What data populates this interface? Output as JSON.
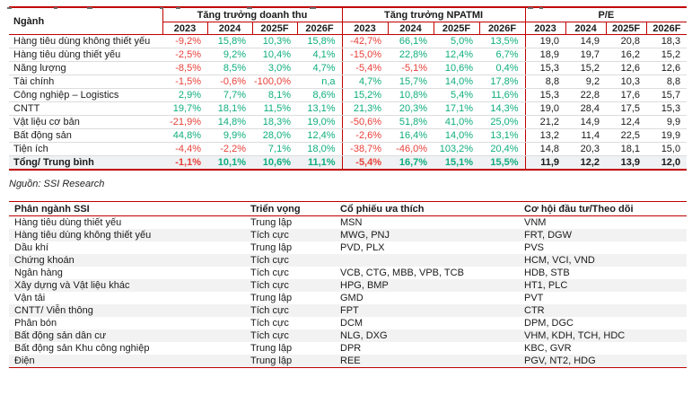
{
  "source_note": "Nguồn: SSI Research",
  "colors": {
    "positive": "#0fae7d",
    "negative": "#e8403a",
    "rule_red": "#c00000",
    "row_shade": "#f2f2f2"
  },
  "table1": {
    "first_col_header": "Ngành",
    "groups": [
      "Tăng trưởng doanh thu",
      "Tăng trưởng NPATMI",
      "P/E"
    ],
    "years": [
      "2023",
      "2024",
      "2025F",
      "2026F"
    ],
    "rows": [
      {
        "name": "Hàng tiêu dùng không thiết yếu",
        "revenue": [
          "-9,2%",
          "15,8%",
          "10,3%",
          "15,8%"
        ],
        "npatmi": [
          "-42,7%",
          "66,1%",
          "5,0%",
          "13,5%"
        ],
        "pe": [
          "19,0",
          "14,9",
          "20,8",
          "18,3"
        ]
      },
      {
        "name": "Hàng tiêu dùng thiết yếu",
        "revenue": [
          "-2,5%",
          "9,2%",
          "10,4%",
          "4,1%"
        ],
        "npatmi": [
          "-15,0%",
          "22,8%",
          "12,4%",
          "6,7%"
        ],
        "pe": [
          "18,9",
          "19,7",
          "16,2",
          "15,2"
        ]
      },
      {
        "name": "Năng lượng",
        "revenue": [
          "-8,5%",
          "8,5%",
          "3,0%",
          "4,7%"
        ],
        "npatmi": [
          "-5,4%",
          "-5,1%",
          "10,6%",
          "0,4%"
        ],
        "pe": [
          "15,3",
          "15,2",
          "12,6",
          "12,6"
        ]
      },
      {
        "name": "Tài chính",
        "revenue": [
          "-1,5%",
          "-0,6%",
          "-100,0%",
          "n,a"
        ],
        "npatmi": [
          "4,7%",
          "15,7%",
          "14,0%",
          "17,8%"
        ],
        "pe": [
          "8,8",
          "9,2",
          "10,3",
          "8,8"
        ]
      },
      {
        "name": "Công nghiệp – Logistics",
        "revenue": [
          "2,9%",
          "7,7%",
          "8,1%",
          "8,6%"
        ],
        "npatmi": [
          "15,2%",
          "10,8%",
          "5,4%",
          "11,6%"
        ],
        "pe": [
          "15,3",
          "22,8",
          "17,6",
          "15,7"
        ]
      },
      {
        "name": "CNTT",
        "revenue": [
          "19,7%",
          "18,1%",
          "11,5%",
          "13,1%"
        ],
        "npatmi": [
          "21,3%",
          "20,3%",
          "17,1%",
          "14,3%"
        ],
        "pe": [
          "19,0",
          "28,4",
          "17,5",
          "15,3"
        ]
      },
      {
        "name": "Vật liệu cơ bản",
        "revenue": [
          "-21,9%",
          "14,8%",
          "18,3%",
          "19,0%"
        ],
        "npatmi": [
          "-50,6%",
          "51,8%",
          "41,0%",
          "25,0%"
        ],
        "pe": [
          "21,2",
          "14,9",
          "12,4",
          "9,9"
        ]
      },
      {
        "name": "Bất động sản",
        "revenue": [
          "44,8%",
          "9,9%",
          "28,0%",
          "12,4%"
        ],
        "npatmi": [
          "-2,6%",
          "16,4%",
          "14,0%",
          "13,1%"
        ],
        "pe": [
          "13,2",
          "11,4",
          "22,5",
          "19,9"
        ]
      },
      {
        "name": "Tiện ích",
        "revenue": [
          "-4,4%",
          "-2,2%",
          "7,1%",
          "18,0%"
        ],
        "npatmi": [
          "-38,7%",
          "-46,0%",
          "103,2%",
          "20,4%"
        ],
        "pe": [
          "14,8",
          "20,3",
          "18,1",
          "15,0"
        ]
      },
      {
        "name": "Tổng/ Trung bình",
        "is_total": true,
        "revenue": [
          "-1,1%",
          "10,1%",
          "10,6%",
          "11,1%"
        ],
        "npatmi": [
          "-5,4%",
          "16,7%",
          "15,1%",
          "15,5%"
        ],
        "pe": [
          "11,9",
          "12,2",
          "13,9",
          "12,0"
        ]
      }
    ]
  },
  "table2": {
    "headers": [
      "Phân ngành SSI",
      "Triển vọng",
      "Cổ phiếu ưa thích",
      "Cơ hội đầu tư/Theo dõi"
    ],
    "rows": [
      {
        "sector": "Hàng tiêu dùng thiết yếu",
        "outlook": "Trung lập",
        "favorites": "MSN",
        "watch": "VNM"
      },
      {
        "sector": "Hàng tiêu dùng không thiết yếu",
        "outlook": "Tích cực",
        "favorites": "MWG, PNJ",
        "watch": "FRT, DGW"
      },
      {
        "sector": "Dầu khí",
        "outlook": "Trung lập",
        "favorites": "PVD, PLX",
        "watch": "PVS"
      },
      {
        "sector": "Chứng khoán",
        "outlook": "Tích cực",
        "favorites": "",
        "watch": "HCM, VCI, VND"
      },
      {
        "sector": "Ngân hàng",
        "outlook": "Tích cực",
        "favorites": "VCB, CTG, MBB, VPB, TCB",
        "watch": "HDB, STB"
      },
      {
        "sector": "Xây dựng và Vật liệu khác",
        "outlook": "Tích cực",
        "favorites": "HPG, BMP",
        "watch": "HT1, PLC"
      },
      {
        "sector": "Vận tải",
        "outlook": "Trung lập",
        "favorites": "GMD",
        "watch": "PVT"
      },
      {
        "sector": "CNTT/ Viễn thông",
        "outlook": "Tích cực",
        "favorites": "FPT",
        "watch": "CTR"
      },
      {
        "sector": "Phân bón",
        "outlook": "Tích cực",
        "favorites": "DCM",
        "watch": "DPM, DGC"
      },
      {
        "sector": "Bất động sản dân cư",
        "outlook": "Tích cực",
        "favorites": "NLG, DXG",
        "watch": "VHM, KDH, TCH, HDC"
      },
      {
        "sector": "Bất động sản Khu công nghiệp",
        "outlook": "Trung lập",
        "favorites": "DPR",
        "watch": "KBC, GVR"
      },
      {
        "sector": "Điện",
        "outlook": "Trung lập",
        "favorites": "REE",
        "watch": "PGV, NT2, HDG"
      }
    ]
  }
}
